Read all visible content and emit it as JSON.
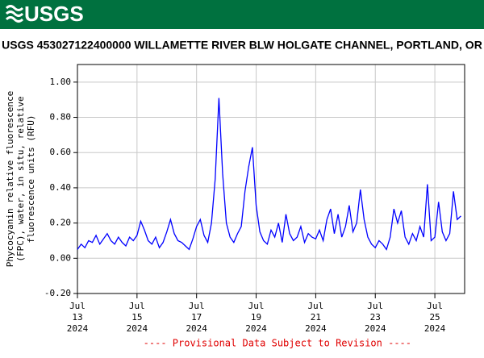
{
  "logo_text": "USGS",
  "chart_data": {
    "type": "line",
    "title": "USGS 453027122400000 WILLAMETTE RIVER BLW HOLGATE CHANNEL, PORTLAND, OR",
    "y_label": [
      "Phycocyanin relative fluorescence",
      "(FPC), water, in situ, relative",
      "fluorescence units (RFU)"
    ],
    "footer": "---- Provisional Data Subject to Revision ----",
    "grid": true,
    "xlim": [
      "2024-07-13T00:00",
      "2024-07-26T00:00"
    ],
    "xticks": [
      {
        "value": "2024-07-13T00:00",
        "label": [
          "Jul",
          "13",
          "2024"
        ]
      },
      {
        "value": "2024-07-15T00:00",
        "label": [
          "Jul",
          "15",
          "2024"
        ]
      },
      {
        "value": "2024-07-17T00:00",
        "label": [
          "Jul",
          "17",
          "2024"
        ]
      },
      {
        "value": "2024-07-19T00:00",
        "label": [
          "Jul",
          "19",
          "2024"
        ]
      },
      {
        "value": "2024-07-21T00:00",
        "label": [
          "Jul",
          "21",
          "2024"
        ]
      },
      {
        "value": "2024-07-23T00:00",
        "label": [
          "Jul",
          "23",
          "2024"
        ]
      },
      {
        "value": "2024-07-25T00:00",
        "label": [
          "Jul",
          "25",
          "2024"
        ]
      }
    ],
    "ylim": [
      -0.2,
      1.1
    ],
    "yticks": [
      {
        "value": -0.2,
        "label": "-0.20"
      },
      {
        "value": 0,
        "label": "0.00"
      },
      {
        "value": 0.2,
        "label": "0.20"
      },
      {
        "value": 0.4,
        "label": "0.40"
      },
      {
        "value": 0.6,
        "label": "0.60"
      },
      {
        "value": 0.8,
        "label": "0.80"
      },
      {
        "value": 1,
        "label": "1.00"
      }
    ],
    "x": [
      "2024-07-13T00:00",
      "2024-07-13T03:00",
      "2024-07-13T06:00",
      "2024-07-13T09:00",
      "2024-07-13T12:00",
      "2024-07-13T15:00",
      "2024-07-13T18:00",
      "2024-07-13T21:00",
      "2024-07-14T00:00",
      "2024-07-14T03:00",
      "2024-07-14T06:00",
      "2024-07-14T09:00",
      "2024-07-14T12:00",
      "2024-07-14T15:00",
      "2024-07-14T18:00",
      "2024-07-14T21:00",
      "2024-07-15T00:00",
      "2024-07-15T03:00",
      "2024-07-15T06:00",
      "2024-07-15T09:00",
      "2024-07-15T12:00",
      "2024-07-15T15:00",
      "2024-07-15T18:00",
      "2024-07-15T21:00",
      "2024-07-16T00:00",
      "2024-07-16T03:00",
      "2024-07-16T06:00",
      "2024-07-16T09:00",
      "2024-07-16T12:00",
      "2024-07-16T15:00",
      "2024-07-16T18:00",
      "2024-07-16T21:00",
      "2024-07-17T00:00",
      "2024-07-17T03:00",
      "2024-07-17T06:00",
      "2024-07-17T09:00",
      "2024-07-17T12:00",
      "2024-07-17T15:00",
      "2024-07-17T18:00",
      "2024-07-17T21:00",
      "2024-07-18T00:00",
      "2024-07-18T03:00",
      "2024-07-18T06:00",
      "2024-07-18T09:00",
      "2024-07-18T12:00",
      "2024-07-18T15:00",
      "2024-07-18T18:00",
      "2024-07-18T21:00",
      "2024-07-19T00:00",
      "2024-07-19T03:00",
      "2024-07-19T06:00",
      "2024-07-19T09:00",
      "2024-07-19T12:00",
      "2024-07-19T15:00",
      "2024-07-19T18:00",
      "2024-07-19T21:00",
      "2024-07-20T00:00",
      "2024-07-20T03:00",
      "2024-07-20T06:00",
      "2024-07-20T09:00",
      "2024-07-20T12:00",
      "2024-07-20T15:00",
      "2024-07-20T18:00",
      "2024-07-20T21:00",
      "2024-07-21T00:00",
      "2024-07-21T03:00",
      "2024-07-21T06:00",
      "2024-07-21T09:00",
      "2024-07-21T12:00",
      "2024-07-21T15:00",
      "2024-07-21T18:00",
      "2024-07-21T21:00",
      "2024-07-22T00:00",
      "2024-07-22T03:00",
      "2024-07-22T06:00",
      "2024-07-22T09:00",
      "2024-07-22T12:00",
      "2024-07-22T15:00",
      "2024-07-22T18:00",
      "2024-07-22T21:00",
      "2024-07-23T00:00",
      "2024-07-23T03:00",
      "2024-07-23T06:00",
      "2024-07-23T09:00",
      "2024-07-23T12:00",
      "2024-07-23T15:00",
      "2024-07-23T18:00",
      "2024-07-23T21:00",
      "2024-07-24T00:00",
      "2024-07-24T03:00",
      "2024-07-24T06:00",
      "2024-07-24T09:00",
      "2024-07-24T12:00",
      "2024-07-24T15:00",
      "2024-07-24T18:00",
      "2024-07-24T21:00",
      "2024-07-25T00:00",
      "2024-07-25T03:00",
      "2024-07-25T06:00",
      "2024-07-25T09:00",
      "2024-07-25T12:00",
      "2024-07-25T15:00",
      "2024-07-25T18:00",
      "2024-07-25T21:00"
    ],
    "series": [
      {
        "color": "#0000ff",
        "values": [
          0.05,
          0.08,
          0.06,
          0.1,
          0.09,
          0.13,
          0.08,
          0.11,
          0.14,
          0.1,
          0.08,
          0.12,
          0.09,
          0.07,
          0.12,
          0.1,
          0.13,
          0.21,
          0.16,
          0.1,
          0.08,
          0.12,
          0.06,
          0.09,
          0.15,
          0.22,
          0.14,
          0.1,
          0.09,
          0.07,
          0.05,
          0.11,
          0.18,
          0.22,
          0.13,
          0.09,
          0.2,
          0.45,
          0.91,
          0.48,
          0.2,
          0.12,
          0.09,
          0.14,
          0.18,
          0.38,
          0.52,
          0.63,
          0.3,
          0.15,
          0.1,
          0.08,
          0.16,
          0.12,
          0.2,
          0.09,
          0.25,
          0.14,
          0.1,
          0.12,
          0.18,
          0.09,
          0.14,
          0.12,
          0.11,
          0.16,
          0.1,
          0.22,
          0.28,
          0.14,
          0.25,
          0.12,
          0.18,
          0.3,
          0.15,
          0.2,
          0.39,
          0.22,
          0.12,
          0.08,
          0.06,
          0.1,
          0.08,
          0.05,
          0.12,
          0.28,
          0.2,
          0.27,
          0.12,
          0.08,
          0.14,
          0.1,
          0.18,
          0.12,
          0.42,
          0.1,
          0.12,
          0.32,
          0.15,
          0.1,
          0.14,
          0.38,
          0.22,
          0.24
        ]
      }
    ]
  }
}
